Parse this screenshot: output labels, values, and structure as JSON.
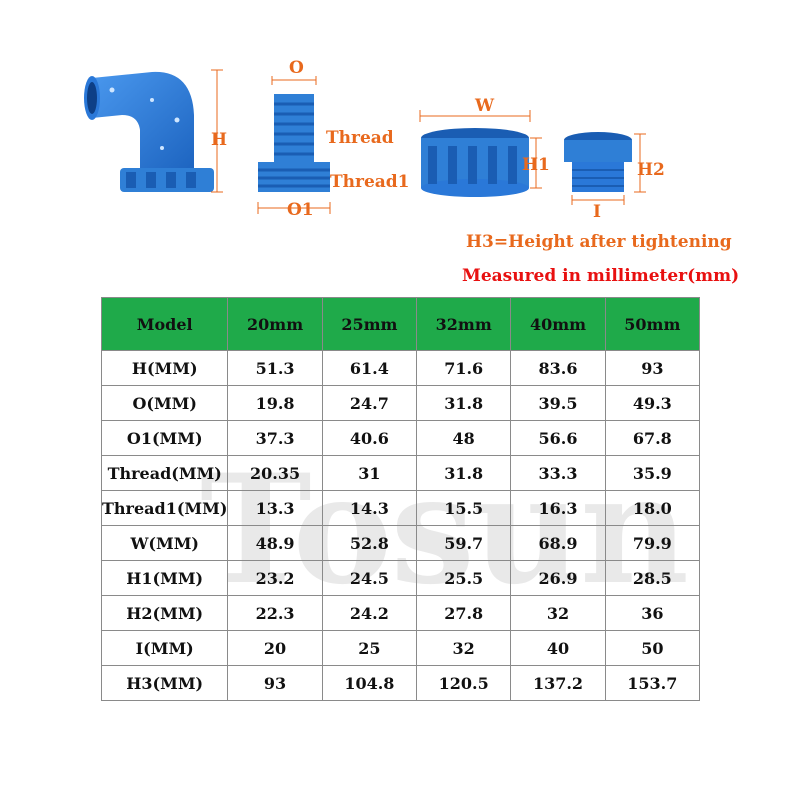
{
  "labels": {
    "H": "H",
    "O": "O",
    "Thread": "Thread",
    "Thread1": "Thread1",
    "O1": "O1",
    "W": "W",
    "H1": "H1",
    "H2": "H2",
    "I": "I"
  },
  "notes": {
    "h3": "H3=Height after tightening",
    "unit": "Measured in millimeter(mm)"
  },
  "colors": {
    "accent_orange": "#e8691d",
    "unit_red": "#e81010",
    "header_green": "#1faa4a",
    "pipe_blue": "#2f7fd6"
  },
  "watermark": "Tosun",
  "table": {
    "headers": [
      "Model",
      "20mm",
      "25mm",
      "32mm",
      "40mm",
      "50mm"
    ],
    "rows": [
      [
        "H(MM)",
        "51.3",
        "61.4",
        "71.6",
        "83.6",
        "93"
      ],
      [
        "O(MM)",
        "19.8",
        "24.7",
        "31.8",
        "39.5",
        "49.3"
      ],
      [
        "O1(MM)",
        "37.3",
        "40.6",
        "48",
        "56.6",
        "67.8"
      ],
      [
        "Thread(MM)",
        "20.35",
        "31",
        "31.8",
        "33.3",
        "35.9"
      ],
      [
        "Thread1(MM)",
        "13.3",
        "14.3",
        "15.5",
        "16.3",
        "18.0"
      ],
      [
        "W(MM)",
        "48.9",
        "52.8",
        "59.7",
        "68.9",
        "79.9"
      ],
      [
        "H1(MM)",
        "23.2",
        "24.5",
        "25.5",
        "26.9",
        "28.5"
      ],
      [
        "H2(MM)",
        "22.3",
        "24.2",
        "27.8",
        "32",
        "36"
      ],
      [
        "I(MM)",
        "20",
        "25",
        "32",
        "40",
        "50"
      ],
      [
        "H3(MM)",
        "93",
        "104.8",
        "120.5",
        "137.2",
        "153.7"
      ]
    ]
  }
}
